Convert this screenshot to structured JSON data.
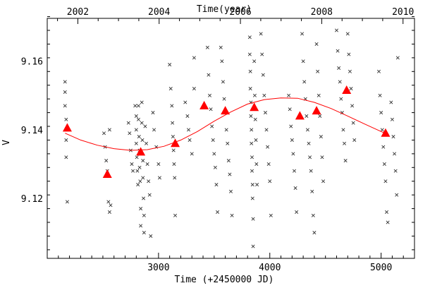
{
  "chart_data": {
    "type": "scatter",
    "xlabel": "Time (+2450000 JD)",
    "ylabel": "V",
    "top_xlabel": "Time(year)",
    "xlim": [
      2000,
      5300
    ],
    "ylim": [
      9.1025,
      9.1725
    ],
    "x_ticks": [
      3000,
      4000,
      5000
    ],
    "x_tick_labels": [
      "3000",
      "4000",
      "5000"
    ],
    "y_ticks": [
      9.12,
      9.14,
      9.16
    ],
    "y_tick_labels": [
      "9.12",
      "9.14",
      "9.16"
    ],
    "year_ticks": [
      {
        "year": 2002,
        "jd": 2275
      },
      {
        "year": 2004,
        "jd": 3005
      },
      {
        "year": 2006,
        "jd": 3736
      },
      {
        "year": 2008,
        "jd": 4466
      },
      {
        "year": 2010,
        "jd": 5197
      }
    ],
    "grid": false,
    "legend": "none",
    "colors": {
      "observations": "#333333",
      "means": "#ff0000",
      "fit": "#ff0000"
    },
    "series": [
      {
        "kind": "observations",
        "marker": "x",
        "points": [
          [
            2160,
            9.154
          ],
          [
            2160,
            9.151
          ],
          [
            2160,
            9.147
          ],
          [
            2170,
            9.143
          ],
          [
            2170,
            9.137
          ],
          [
            2170,
            9.132
          ],
          [
            2180,
            9.119
          ],
          [
            2510,
            9.139
          ],
          [
            2520,
            9.135
          ],
          [
            2530,
            9.131
          ],
          [
            2540,
            9.128
          ],
          [
            2550,
            9.119
          ],
          [
            2560,
            9.14
          ],
          [
            2560,
            9.116
          ],
          [
            2570,
            9.118
          ],
          [
            2730,
            9.142
          ],
          [
            2740,
            9.139
          ],
          [
            2750,
            9.134
          ],
          [
            2760,
            9.13
          ],
          [
            2770,
            9.128
          ],
          [
            2790,
            9.147
          ],
          [
            2800,
            9.144
          ],
          [
            2800,
            9.14
          ],
          [
            2800,
            9.136
          ],
          [
            2805,
            9.132
          ],
          [
            2810,
            9.128
          ],
          [
            2815,
            9.124
          ],
          [
            2820,
            9.147
          ],
          [
            2820,
            9.143
          ],
          [
            2825,
            9.138
          ],
          [
            2830,
            9.134
          ],
          [
            2830,
            9.129
          ],
          [
            2835,
            9.125
          ],
          [
            2840,
            9.117
          ],
          [
            2840,
            9.112
          ],
          [
            2850,
            9.148
          ],
          [
            2850,
            9.142
          ],
          [
            2855,
            9.137
          ],
          [
            2860,
            9.131
          ],
          [
            2860,
            9.126
          ],
          [
            2865,
            9.12
          ],
          [
            2870,
            9.115
          ],
          [
            2870,
            9.11
          ],
          [
            2880,
            9.141
          ],
          [
            2890,
            9.136
          ],
          [
            2900,
            9.13
          ],
          [
            2910,
            9.125
          ],
          [
            2920,
            9.121
          ],
          [
            2930,
            9.109
          ],
          [
            2950,
            9.145
          ],
          [
            2960,
            9.14
          ],
          [
            2980,
            9.135
          ],
          [
            3000,
            9.13
          ],
          [
            3010,
            9.126
          ],
          [
            3100,
            9.159
          ],
          [
            3110,
            9.152
          ],
          [
            3120,
            9.147
          ],
          [
            3125,
            9.142
          ],
          [
            3130,
            9.138
          ],
          [
            3135,
            9.134
          ],
          [
            3140,
            9.13
          ],
          [
            3145,
            9.126
          ],
          [
            3150,
            9.115
          ],
          [
            3240,
            9.148
          ],
          [
            3260,
            9.144
          ],
          [
            3270,
            9.14
          ],
          [
            3280,
            9.137
          ],
          [
            3300,
            9.133
          ],
          [
            3320,
            9.161
          ],
          [
            3320,
            9.152
          ],
          [
            3440,
            9.164
          ],
          [
            3450,
            9.156
          ],
          [
            3460,
            9.15
          ],
          [
            3470,
            9.146
          ],
          [
            3480,
            9.141
          ],
          [
            3490,
            9.137
          ],
          [
            3500,
            9.133
          ],
          [
            3510,
            9.129
          ],
          [
            3520,
            9.124
          ],
          [
            3530,
            9.116
          ],
          [
            3560,
            9.164
          ],
          [
            3570,
            9.16
          ],
          [
            3580,
            9.154
          ],
          [
            3590,
            9.149
          ],
          [
            3600,
            9.145
          ],
          [
            3610,
            9.14
          ],
          [
            3620,
            9.136
          ],
          [
            3630,
            9.131
          ],
          [
            3640,
            9.127
          ],
          [
            3650,
            9.122
          ],
          [
            3660,
            9.115
          ],
          [
            3820,
            9.167
          ],
          [
            3820,
            9.162
          ],
          [
            3825,
            9.157
          ],
          [
            3825,
            9.152
          ],
          [
            3830,
            9.148
          ],
          [
            3830,
            9.144
          ],
          [
            3835,
            9.14
          ],
          [
            3835,
            9.136
          ],
          [
            3840,
            9.132
          ],
          [
            3840,
            9.128
          ],
          [
            3845,
            9.124
          ],
          [
            3845,
            9.12
          ],
          [
            3850,
            9.114
          ],
          [
            3850,
            9.106
          ],
          [
            3860,
            9.16
          ],
          [
            3865,
            9.15
          ],
          [
            3870,
            9.143
          ],
          [
            3875,
            9.137
          ],
          [
            3880,
            9.13
          ],
          [
            3885,
            9.124
          ],
          [
            3920,
            9.168
          ],
          [
            3930,
            9.162
          ],
          [
            3940,
            9.156
          ],
          [
            3950,
            9.15
          ],
          [
            3960,
            9.145
          ],
          [
            3970,
            9.14
          ],
          [
            3980,
            9.135
          ],
          [
            3990,
            9.13
          ],
          [
            4000,
            9.125
          ],
          [
            4010,
            9.115
          ],
          [
            4170,
            9.15
          ],
          [
            4180,
            9.146
          ],
          [
            4190,
            9.141
          ],
          [
            4200,
            9.137
          ],
          [
            4210,
            9.133
          ],
          [
            4220,
            9.128
          ],
          [
            4230,
            9.123
          ],
          [
            4240,
            9.116
          ],
          [
            4290,
            9.168
          ],
          [
            4300,
            9.16
          ],
          [
            4310,
            9.154
          ],
          [
            4320,
            9.149
          ],
          [
            4330,
            9.144
          ],
          [
            4340,
            9.14
          ],
          [
            4350,
            9.136
          ],
          [
            4360,
            9.132
          ],
          [
            4370,
            9.128
          ],
          [
            4380,
            9.122
          ],
          [
            4390,
            9.115
          ],
          [
            4400,
            9.11
          ],
          [
            4420,
            9.165
          ],
          [
            4430,
            9.157
          ],
          [
            4440,
            9.15
          ],
          [
            4450,
            9.144
          ],
          [
            4460,
            9.138
          ],
          [
            4470,
            9.132
          ],
          [
            4480,
            9.125
          ],
          [
            4600,
            9.169
          ],
          [
            4610,
            9.163
          ],
          [
            4620,
            9.158
          ],
          [
            4630,
            9.154
          ],
          [
            4640,
            9.149
          ],
          [
            4650,
            9.145
          ],
          [
            4660,
            9.14
          ],
          [
            4670,
            9.136
          ],
          [
            4680,
            9.131
          ],
          [
            4700,
            9.168
          ],
          [
            4710,
            9.162
          ],
          [
            4720,
            9.157
          ],
          [
            4730,
            9.152
          ],
          [
            4740,
            9.147
          ],
          [
            4750,
            9.142
          ],
          [
            4760,
            9.137
          ],
          [
            4980,
            9.157
          ],
          [
            4990,
            9.15
          ],
          [
            5000,
            9.145
          ],
          [
            5010,
            9.14
          ],
          [
            5020,
            9.135
          ],
          [
            5030,
            9.13
          ],
          [
            5040,
            9.125
          ],
          [
            5050,
            9.116
          ],
          [
            5060,
            9.113
          ],
          [
            5090,
            9.148
          ],
          [
            5100,
            9.143
          ],
          [
            5110,
            9.138
          ],
          [
            5120,
            9.133
          ],
          [
            5130,
            9.128
          ],
          [
            5140,
            9.121
          ],
          [
            5150,
            9.161
          ]
        ]
      },
      {
        "kind": "means",
        "marker": "triangle",
        "points": [
          [
            2180,
            9.1405
          ],
          [
            2540,
            9.127
          ],
          [
            2840,
            9.1335
          ],
          [
            3150,
            9.136
          ],
          [
            3410,
            9.147
          ],
          [
            3600,
            9.1455
          ],
          [
            3860,
            9.1465
          ],
          [
            4270,
            9.144
          ],
          [
            4420,
            9.1455
          ],
          [
            4690,
            9.1515
          ],
          [
            5040,
            9.139
          ]
        ]
      },
      {
        "kind": "fit",
        "marker": "line",
        "points": [
          [
            2160,
            9.139
          ],
          [
            2300,
            9.137
          ],
          [
            2450,
            9.1355
          ],
          [
            2600,
            9.1345
          ],
          [
            2750,
            9.134
          ],
          [
            2900,
            9.1342
          ],
          [
            3050,
            9.1352
          ],
          [
            3200,
            9.137
          ],
          [
            3350,
            9.1395
          ],
          [
            3500,
            9.1425
          ],
          [
            3650,
            9.1452
          ],
          [
            3800,
            9.1475
          ],
          [
            3950,
            9.1488
          ],
          [
            4100,
            9.1493
          ],
          [
            4250,
            9.1492
          ],
          [
            4400,
            9.148
          ],
          [
            4550,
            9.1462
          ],
          [
            4700,
            9.144
          ],
          [
            4850,
            9.1417
          ],
          [
            5000,
            9.1395
          ],
          [
            5070,
            9.1385
          ]
        ]
      }
    ]
  }
}
